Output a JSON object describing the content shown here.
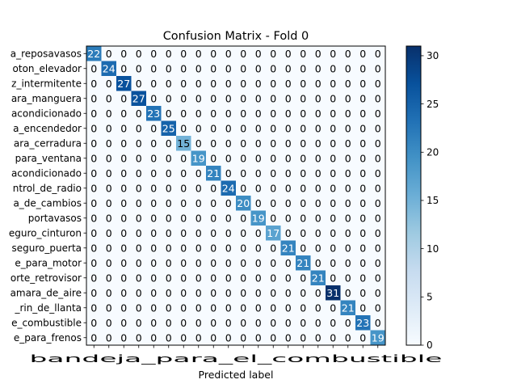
{
  "chart_data": {
    "type": "heatmap",
    "title": "Confusion Matrix - Fold 0",
    "xlabel": "Predicted label",
    "ylabel": "",
    "row_labels": [
      "a_reposavasos",
      "oton_elevador",
      "z_intermitente",
      "ara_manguera",
      "acondicionado",
      "a_encendedor",
      "ara_cerradura",
      "para_ventana",
      "acondicionado",
      "ntrol_de_radio",
      "a_de_cambios",
      "portavasos",
      "eguro_cinturon",
      "seguro_puerta",
      "e_para_motor",
      "orte_retrovisor",
      "amara_de_aire",
      "_rin_de_llanta",
      "e_combustible",
      "e_para_frenos"
    ],
    "x_tick_text": "bandeja_para_el_combustible",
    "colorbar": {
      "colormap": "Blues",
      "min": 0,
      "max": 31,
      "ticks": [
        0,
        5,
        10,
        15,
        20,
        25,
        30
      ]
    },
    "diagonal": [
      22,
      24,
      27,
      27,
      23,
      25,
      15,
      19,
      21,
      24,
      20,
      19,
      17,
      21,
      21,
      21,
      31,
      21,
      23,
      19
    ],
    "off_diagonal_value": 0
  }
}
